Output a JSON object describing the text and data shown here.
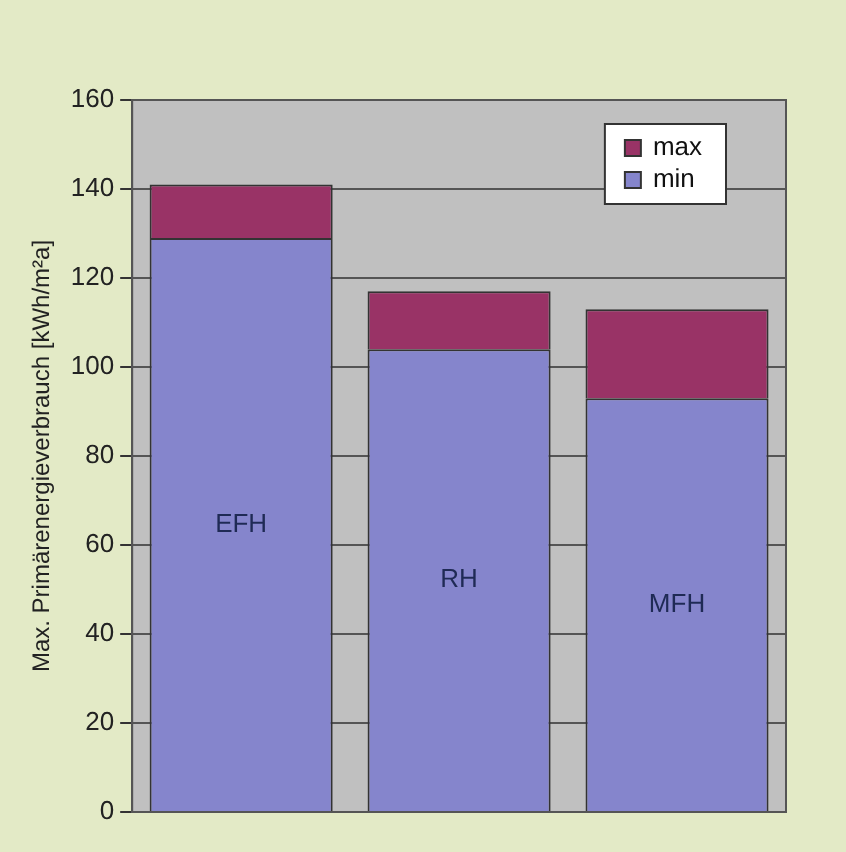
{
  "chart_data": {
    "type": "bar",
    "stacked": true,
    "ylabel": "Max. Primärenergieverbrauch [kWh/m²a]",
    "categories": [
      "EFH",
      "RH",
      "MFH"
    ],
    "series": [
      {
        "name": "min",
        "color": "#8585cc",
        "values": [
          129,
          104,
          93
        ]
      },
      {
        "name": "max",
        "color": "#993366",
        "values": [
          12,
          13,
          20
        ]
      }
    ],
    "ylim": [
      0,
      160
    ],
    "yticks": [
      0,
      20,
      40,
      60,
      80,
      100,
      120,
      140,
      160
    ],
    "grid": "y",
    "legend": "top right"
  }
}
